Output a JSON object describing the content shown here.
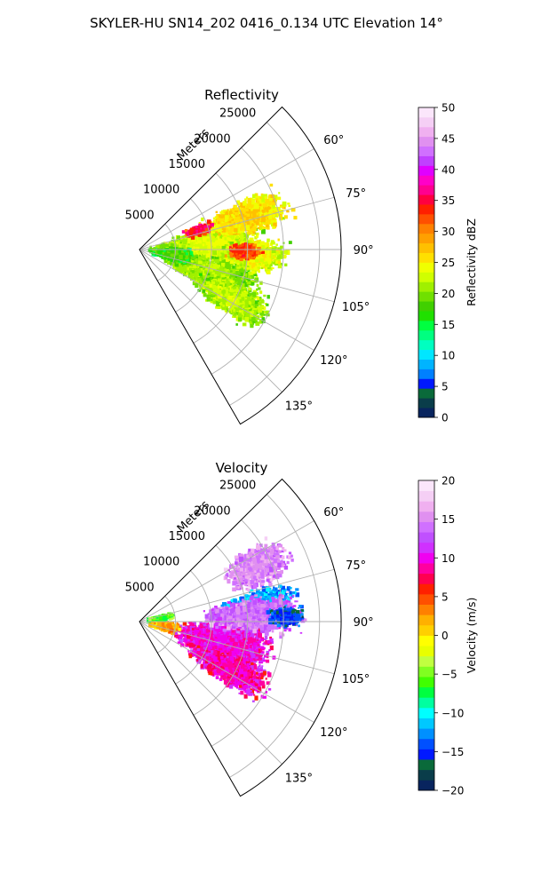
{
  "figure": {
    "suptitle": "SKYLER-HU  SN14_202  0416_0.134 UTC Elevation 14°"
  },
  "chart_data": [
    {
      "type": "heatmap",
      "projection": "polar-sector",
      "title": "Reflectivity",
      "radial_axis_label": "Meters",
      "radial_ticks": [
        5000,
        10000,
        15000,
        20000,
        25000
      ],
      "radial_tick_labels": [
        "5000",
        "10000",
        "15000",
        "20000",
        "25000"
      ],
      "rmax": 28000,
      "angular_range_deg": [
        45,
        150
      ],
      "angular_ticks_deg": [
        60,
        75,
        90,
        105,
        120,
        135
      ],
      "angular_tick_labels": [
        "60°",
        "75°",
        "90°",
        "105°",
        "120°",
        "135°"
      ],
      "grid": true,
      "colorbar": {
        "label": "Reflectivity dBZ",
        "range": [
          0,
          50
        ],
        "ticks": [
          0,
          5,
          10,
          15,
          20,
          25,
          30,
          35,
          40,
          45,
          50
        ],
        "tick_labels": [
          "0",
          "5",
          "10",
          "15",
          "20",
          "25",
          "30",
          "35",
          "40",
          "45",
          "50"
        ],
        "colors": [
          "#08245e",
          "#0a3d4a",
          "#0a6a3a",
          "#0019ff",
          "#0080ff",
          "#00b4ff",
          "#00e6ff",
          "#00ffc0",
          "#00ff80",
          "#00ff40",
          "#20e000",
          "#40d000",
          "#70e000",
          "#a0f000",
          "#d0ff00",
          "#f0ff00",
          "#ffe000",
          "#ffc000",
          "#ffa000",
          "#ff8000",
          "#ff5000",
          "#ff2000",
          "#ff0040",
          "#ff0090",
          "#ff00c8",
          "#e000ff",
          "#c040ff",
          "#d070ff",
          "#e090f0",
          "#f0b0f0",
          "#f5cff5",
          "#fbe6fb"
        ]
      },
      "echo_regions": [
        {
          "az": 85,
          "r": 9500,
          "saz": 16,
          "sr": 8500,
          "value": 20
        },
        {
          "az": 108,
          "r": 10500,
          "saz": 14,
          "sr": 8000,
          "value": 18
        },
        {
          "az": 73,
          "r": 15500,
          "saz": 10,
          "sr": 7000,
          "value": 23
        },
        {
          "az": 93,
          "r": 16000,
          "saz": 9,
          "sr": 5500,
          "value": 21
        },
        {
          "az": 72,
          "r": 8500,
          "saz": 5,
          "sr": 2500,
          "value": 32
        },
        {
          "az": 91,
          "r": 14500,
          "saz": 5,
          "sr": 3000,
          "value": 30
        },
        {
          "az": 118,
          "r": 14500,
          "saz": 10,
          "sr": 6500,
          "value": 19
        },
        {
          "az": 98,
          "r": 4500,
          "saz": 12,
          "sr": 3500,
          "value": 15
        }
      ]
    },
    {
      "type": "heatmap",
      "projection": "polar-sector",
      "title": "Velocity",
      "radial_axis_label": "Meters",
      "radial_ticks": [
        5000,
        10000,
        15000,
        20000,
        25000
      ],
      "radial_tick_labels": [
        "5000",
        "10000",
        "15000",
        "20000",
        "25000"
      ],
      "rmax": 28000,
      "angular_range_deg": [
        45,
        150
      ],
      "angular_ticks_deg": [
        60,
        75,
        90,
        105,
        120,
        135
      ],
      "angular_tick_labels": [
        "60°",
        "75°",
        "90°",
        "105°",
        "120°",
        "135°"
      ],
      "grid": true,
      "colorbar": {
        "label": "Velocity (m/s)",
        "range": [
          -20,
          20
        ],
        "ticks": [
          -20,
          -15,
          -10,
          -5,
          0,
          5,
          10,
          15,
          20
        ],
        "tick_labels": [
          "−20",
          "−15",
          "−10",
          "−5",
          "0",
          "5",
          "10",
          "15",
          "20"
        ],
        "colors": [
          "#08245e",
          "#0a3d4a",
          "#0a6a3a",
          "#0019ff",
          "#0050ff",
          "#0090ff",
          "#00c8ff",
          "#00ffff",
          "#00ffa0",
          "#00ff40",
          "#40ff00",
          "#80ff20",
          "#c0ff40",
          "#e8ff00",
          "#ffff00",
          "#ffd000",
          "#ffb000",
          "#ff8000",
          "#ff5000",
          "#ff2000",
          "#ff0050",
          "#ff00a0",
          "#f000f0",
          "#d030ff",
          "#c050ff",
          "#d070ff",
          "#e090f0",
          "#f0b0f0",
          "#f5cff5",
          "#fbe6fb"
        ]
      },
      "echo_regions": [
        {
          "az": 105,
          "r": 12000,
          "saz": 18,
          "sr": 8000,
          "value": 10
        },
        {
          "az": 118,
          "r": 14000,
          "saz": 10,
          "sr": 7000,
          "value": 9
        },
        {
          "az": 65,
          "r": 18000,
          "saz": 10,
          "sr": 5500,
          "value": 15
        },
        {
          "az": 80,
          "r": 17000,
          "saz": 6,
          "sr": 6000,
          "value": -12
        },
        {
          "az": 87,
          "r": 16000,
          "saz": 10,
          "sr": 8000,
          "value": 14
        },
        {
          "az": 88,
          "r": 20500,
          "saz": 5,
          "sr": 3000,
          "value": -15
        },
        {
          "az": 100,
          "r": 3500,
          "saz": 10,
          "sr": 2500,
          "value": 2
        },
        {
          "az": 80,
          "r": 3000,
          "saz": 6,
          "sr": 2000,
          "value": -6
        }
      ]
    }
  ]
}
